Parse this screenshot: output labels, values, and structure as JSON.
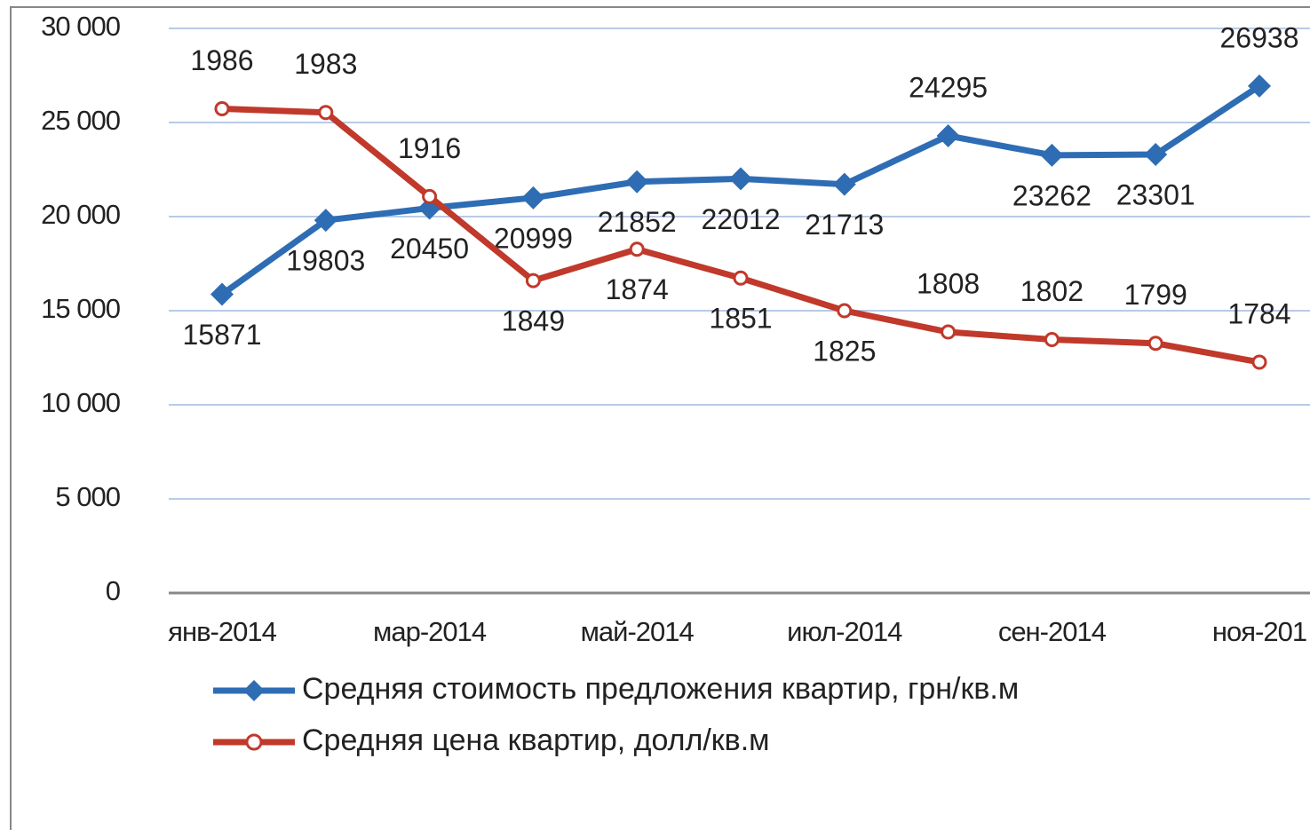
{
  "chart_data": {
    "type": "line",
    "categories": [
      "янв-2014",
      null,
      "мар-2014",
      null,
      "май-2014",
      null,
      "июл-2014",
      null,
      "сен-2014",
      null,
      "ноя-201"
    ],
    "series": [
      {
        "name": "Средняя стоимость предложения квартир, грн/кв.м",
        "color": "#2e6db4",
        "marker": "diamond",
        "values": [
          15871,
          19803,
          20450,
          20999,
          21852,
          22012,
          21713,
          24295,
          23262,
          23301,
          26938
        ]
      },
      {
        "name": "Средняя цена квартир, долл/кв.м",
        "color": "#c0392b",
        "marker": "circle",
        "axis": "y2",
        "values": [
          1986,
          1983,
          1916,
          1849,
          1874,
          1851,
          1825,
          1808,
          1802,
          1799,
          1784
        ]
      }
    ],
    "ylim": [
      0,
      30000
    ],
    "yticks": [
      0,
      {
        "value": 5000,
        "label": "5 000"
      },
      {
        "value": 10000,
        "label": "10 000"
      },
      {
        "value": 15000,
        "label": "15 000"
      },
      {
        "value": 20000,
        "label": "20 000"
      },
      {
        "value": 25000,
        "label": "25 000"
      },
      {
        "value": 30000,
        "label": "30 000"
      }
    ],
    "y2lim": [
      1600,
      2050
    ],
    "grid": true,
    "legend": "bottom"
  }
}
